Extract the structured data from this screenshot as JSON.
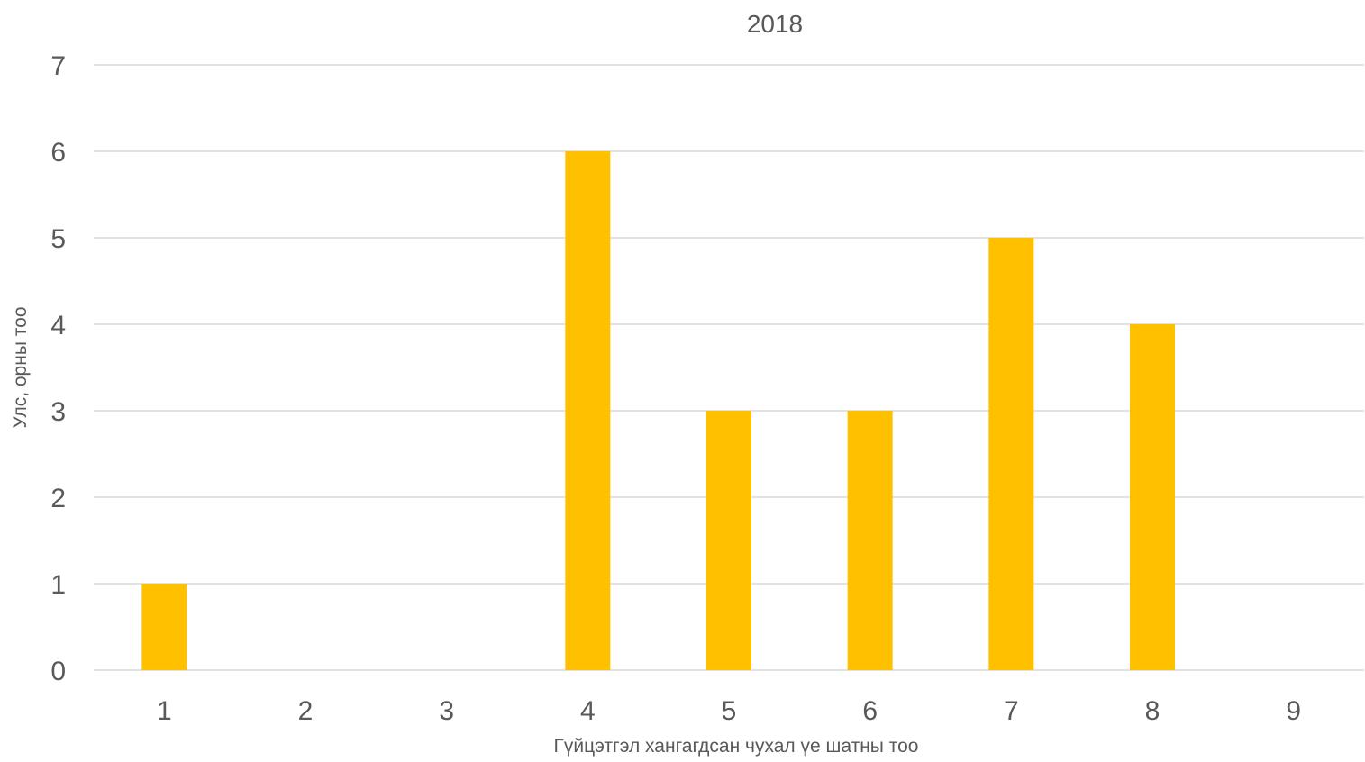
{
  "chart_data": {
    "type": "bar",
    "title": "2018",
    "xlabel": "Гүйцэтгэл хангагдсан чухал үе шатны тоо",
    "ylabel": "Улс, орны тоо",
    "categories": [
      "1",
      "2",
      "3",
      "4",
      "5",
      "6",
      "7",
      "8",
      "9"
    ],
    "values": [
      1,
      0,
      0,
      6,
      3,
      3,
      5,
      4,
      0
    ],
    "ylim": [
      0,
      7
    ],
    "yticks": [
      "0",
      "1",
      "2",
      "3",
      "4",
      "5",
      "6",
      "7"
    ],
    "grid": true,
    "legend": "none",
    "colors": {
      "bar": "#FFC000",
      "grid": "#D9D9D9",
      "text": "#595959"
    }
  }
}
